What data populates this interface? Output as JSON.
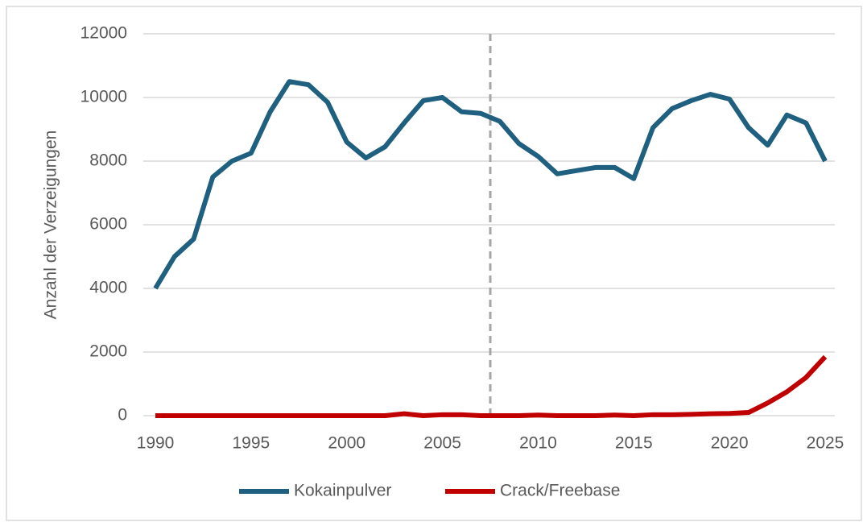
{
  "chart_data": {
    "type": "line",
    "y_label": "Anzahl der Verzeigungen",
    "x": [
      1990,
      1991,
      1992,
      1993,
      1994,
      1995,
      1996,
      1997,
      1998,
      1999,
      2000,
      2001,
      2002,
      2003,
      2004,
      2005,
      2006,
      2007,
      2008,
      2009,
      2010,
      2011,
      2012,
      2013,
      2014,
      2015,
      2016,
      2017,
      2018,
      2019,
      2020,
      2021,
      2022,
      2023,
      2024,
      2025
    ],
    "series": [
      {
        "name": "Kokainpulver",
        "color": "#1f5f7f",
        "values": [
          4000,
          5000,
          5550,
          7500,
          8000,
          8250,
          9550,
          10500,
          10400,
          9850,
          8600,
          8100,
          8450,
          9200,
          9900,
          10000,
          9550,
          9500,
          9250,
          8550,
          8150,
          7600,
          7700,
          7800,
          7800,
          7450,
          9050,
          9650,
          9900,
          10100,
          9950,
          9050,
          8500,
          9450,
          9200,
          8000
        ]
      },
      {
        "name": "Crack/Freebase",
        "color": "#c00000",
        "values": [
          0,
          0,
          0,
          0,
          0,
          0,
          0,
          0,
          0,
          0,
          0,
          0,
          0,
          60,
          0,
          30,
          30,
          0,
          0,
          0,
          20,
          0,
          0,
          0,
          20,
          0,
          30,
          30,
          40,
          60,
          70,
          100,
          400,
          750,
          1200,
          1850
        ]
      }
    ],
    "vline_x": 2007.5,
    "xlim": [
      1990,
      2025
    ],
    "xticks": [
      1990,
      1995,
      2000,
      2005,
      2010,
      2015,
      2020,
      2025
    ],
    "ylim": [
      0,
      12000
    ],
    "yticks": [
      0,
      2000,
      4000,
      6000,
      8000,
      10000,
      12000
    ],
    "grid": true,
    "legend": "bottom"
  }
}
